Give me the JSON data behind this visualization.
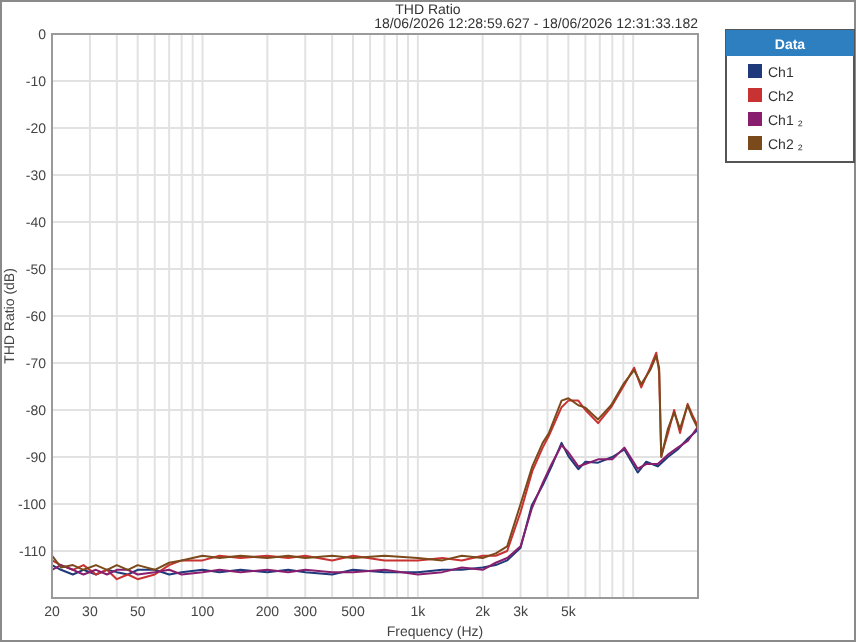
{
  "chart_data": {
    "type": "line",
    "title": "THD Ratio",
    "subtitle": "18/06/2026 12:28:59.627 - 18/06/2026 12:31:33.182",
    "xlabel": "Frequency (Hz)",
    "ylabel": "THD Ratio (dB)",
    "legend_title": "Data",
    "legend": "top right",
    "grid": true,
    "log": "x",
    "xlim": [
      20,
      20000
    ],
    "ylim": [
      -120,
      0
    ],
    "xticks": [
      20,
      30,
      {
        "value": 40,
        "label": null
      },
      50,
      {
        "value": 60,
        "label": null
      },
      {
        "value": 70,
        "label": null
      },
      {
        "value": 80,
        "label": null
      },
      {
        "value": 90,
        "label": null
      },
      100,
      200,
      300,
      {
        "value": 400,
        "label": null
      },
      500,
      {
        "value": 600,
        "label": null
      },
      {
        "value": 700,
        "label": null
      },
      {
        "value": 800,
        "label": null
      },
      {
        "value": 900,
        "label": null
      },
      {
        "value": 1000,
        "label": "1k"
      },
      {
        "value": 2000,
        "label": "2k"
      },
      {
        "value": 3000,
        "label": "3k"
      },
      {
        "value": 4000,
        "label": null
      },
      {
        "value": 5000,
        "label": "5k"
      },
      {
        "value": 6000,
        "label": null
      },
      {
        "value": 7000,
        "label": null
      },
      {
        "value": 8000,
        "label": null
      },
      {
        "value": 9000,
        "label": null
      },
      {
        "value": 10000,
        "label": null
      },
      {
        "value": 20000,
        "label": null
      }
    ],
    "yticks": [
      0,
      -10,
      -20,
      -30,
      -40,
      -50,
      -60,
      -70,
      -80,
      -90,
      -100,
      -110
    ],
    "series": [
      {
        "name": "Ch1",
        "color": "#1f3a7a",
        "x": [
          20,
          22,
          25,
          28,
          32,
          36,
          40,
          45,
          50,
          60,
          70,
          80,
          100,
          120,
          150,
          200,
          250,
          300,
          400,
          500,
          700,
          1000,
          1300,
          1600,
          2000,
          2300,
          2600,
          3000,
          3380,
          3800,
          4180,
          4650,
          5000,
          5560,
          6000,
          6870,
          8000,
          9100,
          10500,
          11500,
          13000,
          14500,
          16100,
          18000,
          20000
        ],
        "values": [
          -113,
          -114,
          -115,
          -114,
          -115,
          -114,
          -114.5,
          -115,
          -114,
          -114,
          -115,
          -114.5,
          -114,
          -114.5,
          -114,
          -114.5,
          -114,
          -114.5,
          -115,
          -114,
          -114.5,
          -114.5,
          -114,
          -114,
          -113.5,
          -113,
          -112,
          -109.3,
          -100.3,
          -96,
          -92,
          -87,
          -89.8,
          -92.6,
          -91,
          -91.2,
          -90,
          -88.4,
          -93.3,
          -91,
          -92,
          -90,
          -88.4,
          -86,
          -84.2
        ]
      },
      {
        "name": "Ch2",
        "color": "#c83232",
        "x": [
          20,
          22,
          25,
          28,
          32,
          36,
          40,
          45,
          50,
          60,
          70,
          80,
          100,
          120,
          150,
          200,
          250,
          300,
          400,
          500,
          700,
          1000,
          1300,
          1600,
          2000,
          2300,
          2600,
          3000,
          3400,
          3800,
          4050,
          4650,
          5000,
          5560,
          6000,
          6870,
          7900,
          9000,
          10100,
          10900,
          12000,
          12800,
          13200,
          13500,
          14500,
          15500,
          16500,
          17900,
          18800,
          20000
        ],
        "values": [
          -112,
          -113,
          -114,
          -113,
          -115,
          -114,
          -116,
          -115,
          -116,
          -115,
          -113,
          -112,
          -112,
          -111,
          -111.5,
          -111,
          -111.5,
          -111,
          -112,
          -111,
          -112,
          -112,
          -111.5,
          -112,
          -111,
          -111,
          -110,
          -101.7,
          -93,
          -88,
          -85.6,
          -79.4,
          -78,
          -78,
          -80,
          -82.8,
          -79.4,
          -75,
          -71,
          -75.2,
          -71,
          -67.8,
          -72,
          -89.8,
          -85,
          -80,
          -84.9,
          -78.7,
          -81,
          -83.5
        ]
      },
      {
        "name": "Ch1 ₂",
        "color": "#8a1e6e",
        "x": [
          20,
          22,
          25,
          28,
          32,
          36,
          40,
          45,
          50,
          60,
          70,
          80,
          100,
          120,
          150,
          200,
          250,
          300,
          400,
          500,
          700,
          1000,
          1300,
          1600,
          2000,
          2300,
          2600,
          3000,
          3380,
          3800,
          4180,
          4650,
          5000,
          5560,
          6000,
          6870,
          8000,
          9100,
          10500,
          11500,
          13000,
          14500,
          16100,
          18000,
          20000
        ],
        "values": [
          -114,
          -113,
          -114,
          -115,
          -114,
          -115,
          -114,
          -114,
          -115,
          -114.5,
          -114,
          -115,
          -114.5,
          -114,
          -114.5,
          -114,
          -114.5,
          -114,
          -114.5,
          -114.5,
          -114,
          -115,
          -114.5,
          -113.5,
          -114,
          -112.5,
          -111.5,
          -109,
          -101,
          -95.5,
          -91.5,
          -87.5,
          -89,
          -92,
          -91.5,
          -90.5,
          -90.5,
          -88,
          -92.5,
          -91.5,
          -91.5,
          -89.5,
          -88,
          -86.5,
          -83.5
        ]
      },
      {
        "name": "Ch2 ₂",
        "color": "#7a4a1a",
        "x": [
          20,
          22,
          25,
          28,
          32,
          36,
          40,
          45,
          50,
          60,
          70,
          80,
          100,
          120,
          150,
          200,
          250,
          300,
          400,
          500,
          700,
          1000,
          1300,
          1600,
          2000,
          2300,
          2600,
          3000,
          3400,
          3800,
          4050,
          4650,
          5000,
          5560,
          6000,
          6870,
          7900,
          9000,
          10100,
          10900,
          12000,
          12800,
          13200,
          13500,
          14500,
          15500,
          16500,
          17900,
          18800,
          20000
        ],
        "values": [
          -111,
          -113.5,
          -113,
          -114,
          -113,
          -114,
          -113,
          -114,
          -113,
          -114,
          -112.5,
          -112,
          -111,
          -111.5,
          -111,
          -111.5,
          -111,
          -111.5,
          -111,
          -111.5,
          -111,
          -111.5,
          -112,
          -111,
          -111.5,
          -110.5,
          -109,
          -100,
          -92,
          -87,
          -85,
          -78,
          -77.5,
          -79,
          -79.5,
          -82,
          -79,
          -74.5,
          -71.5,
          -74.5,
          -71.5,
          -68.5,
          -71,
          -90,
          -84,
          -80.5,
          -84,
          -79,
          -81.5,
          -84
        ]
      }
    ]
  }
}
